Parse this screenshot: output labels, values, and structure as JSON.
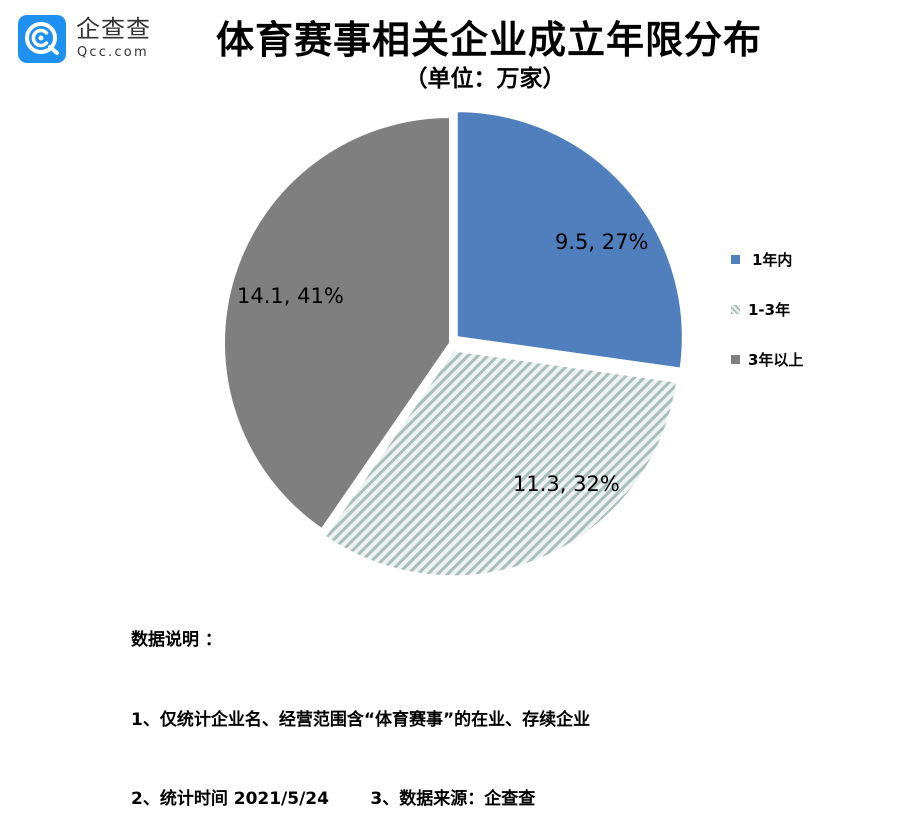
{
  "logo": {
    "cn_text": "企查查",
    "en_text": "Qcc.com",
    "badge_color": "#1e90f0"
  },
  "title": "体育赛事相关企业成立年限分布",
  "subtitle": "（单位：万家）",
  "colors": {
    "slice_1": "#4f7fbd",
    "slice_2_stripe": "#a9bebb",
    "slice_2_bg": "#eef2f1",
    "slice_3": "#7f7f7f"
  },
  "chart_data": {
    "type": "pie",
    "title": "体育赛事相关企业成立年限分布",
    "subtitle": "（单位：万家）",
    "unit": "万家",
    "categories": [
      "1年内",
      "1-3年",
      "3年以上"
    ],
    "values": [
      9.5,
      11.3,
      14.1
    ],
    "percentages": [
      27,
      32,
      41
    ],
    "data_labels": [
      "9.5, 27%",
      "11.3, 32%",
      "14.1, 41%"
    ],
    "start_angle": "12 o'clock, clockwise",
    "exploded": [
      true,
      true,
      false
    ],
    "legend_position": "right",
    "series_styles": [
      "solid blue",
      "diagonal hatch light gray-green",
      "solid gray"
    ]
  },
  "legend": {
    "items": [
      {
        "label": "1年内"
      },
      {
        "label": "1-3年"
      },
      {
        "label": "3年以上"
      }
    ]
  },
  "notes": {
    "heading": "数据说明 ：",
    "line1": "1、仅统计企业名、经营范围含“体育赛事”的在业、存续企业",
    "line2": "2、统计时间 2021/5/24       3、数据来源：企查查"
  }
}
